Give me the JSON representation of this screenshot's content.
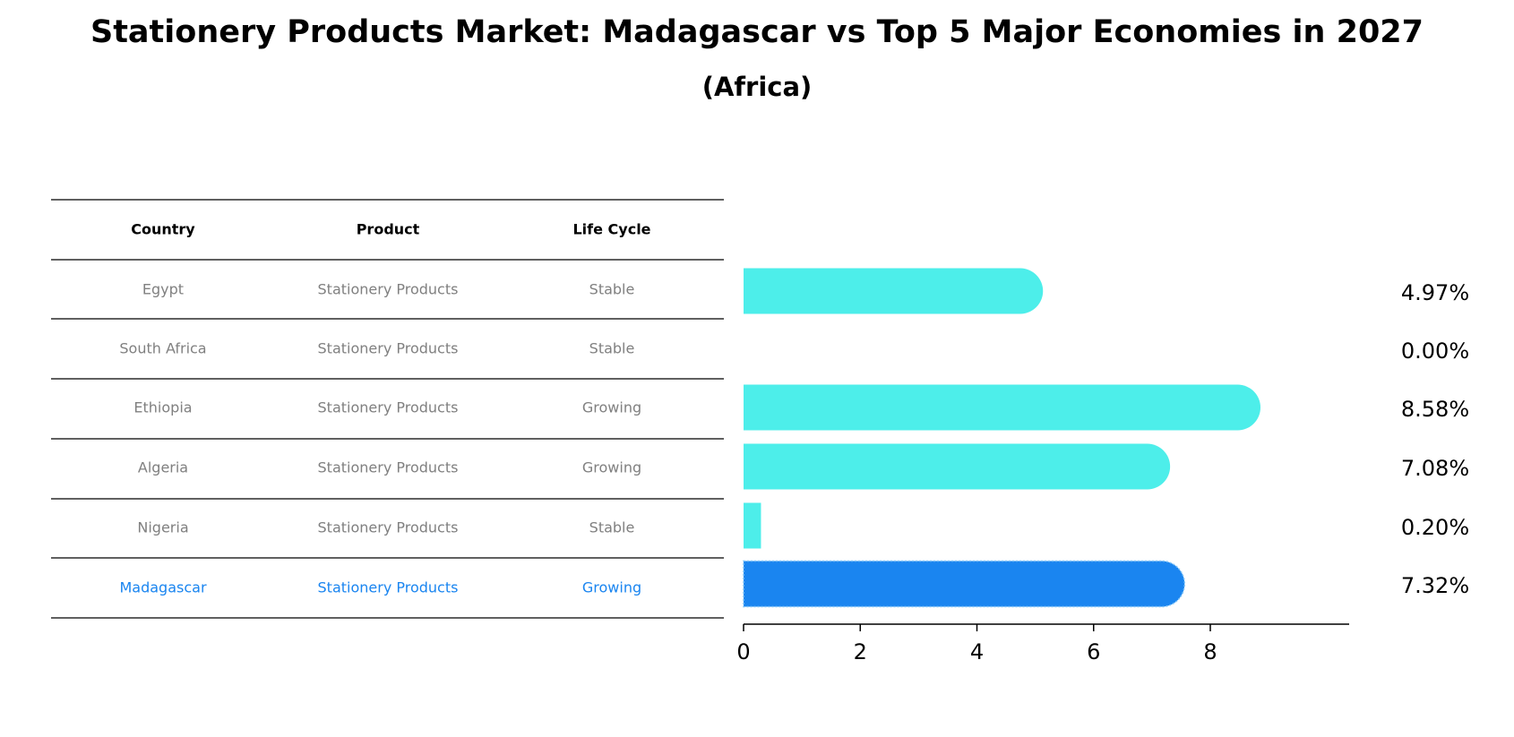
{
  "title": "Stationery Products Market: Madagascar vs Top 5 Major Economies in 2027",
  "subtitle": "(Africa)",
  "table": {
    "headers": [
      "Country",
      "Product",
      "Life Cycle"
    ],
    "rows": [
      {
        "country": "Egypt",
        "product": "Stationery Products",
        "life_cycle": "Stable",
        "highlight": false
      },
      {
        "country": "South Africa",
        "product": "Stationery Products",
        "life_cycle": "Stable",
        "highlight": false
      },
      {
        "country": "Ethiopia",
        "product": "Stationery Products",
        "life_cycle": "Growing",
        "highlight": false
      },
      {
        "country": "Algeria",
        "product": "Stationery Products",
        "life_cycle": "Growing",
        "highlight": false
      },
      {
        "country": "Nigeria",
        "product": "Stationery Products",
        "life_cycle": "Stable",
        "highlight": false
      },
      {
        "country": "Madagascar",
        "product": "Stationery Products",
        "life_cycle": "Growing",
        "highlight": true
      }
    ]
  },
  "colors": {
    "bar": "#4deeea",
    "highlight_bar": "#1a85f0",
    "highlight_text": "#1a85f0",
    "muted_text": "#808080",
    "header_text": "#000000"
  },
  "chart_data": {
    "type": "bar",
    "orientation": "horizontal",
    "categories": [
      "Egypt",
      "South Africa",
      "Ethiopia",
      "Algeria",
      "Nigeria",
      "Madagascar"
    ],
    "values": [
      4.97,
      0.0,
      8.58,
      7.08,
      0.2,
      7.32
    ],
    "data_labels": [
      "4.97%",
      "0.00%",
      "8.58%",
      "7.08%",
      "0.20%",
      "7.32%"
    ],
    "highlight_category": "Madagascar",
    "xlim": [
      0,
      9
    ],
    "xticks": [
      0,
      2,
      4,
      6,
      8
    ],
    "grid": false
  }
}
